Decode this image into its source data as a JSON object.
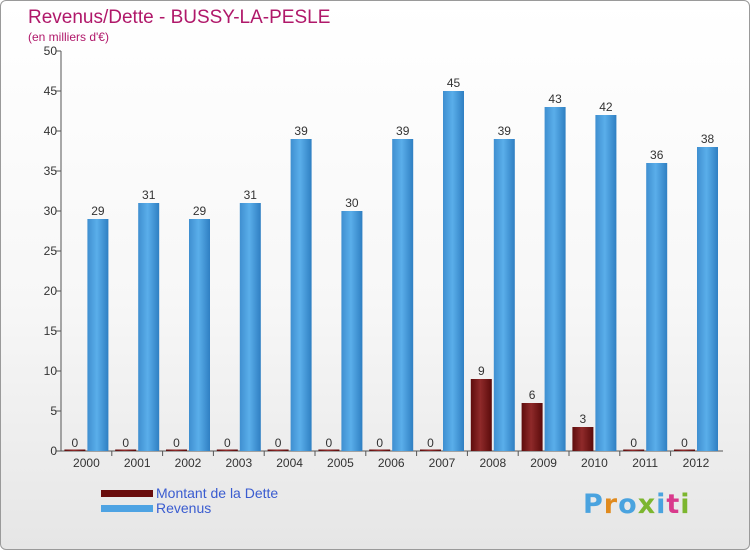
{
  "header": {
    "title": "Revenus/Dette - BUSSY-LA-PESLE",
    "subtitle": "(en milliers d'€)"
  },
  "colors": {
    "dette": "#7a1515",
    "revenus": "#4ea3e3",
    "title": "#b0186a",
    "legend_text": "#3a5cd0"
  },
  "logo": {
    "text": "Proxiti",
    "letter_colors": [
      "#4aa3df",
      "#e08a1e",
      "#4aa3df",
      "#7cb62f",
      "#4aa3df",
      "#d93a8c",
      "#7cb62f"
    ]
  },
  "chart_data": {
    "type": "bar",
    "title": "Revenus/Dette - BUSSY-LA-PESLE",
    "subtitle": "(en milliers d'€)",
    "categories": [
      "2000",
      "2001",
      "2002",
      "2003",
      "2004",
      "2005",
      "2006",
      "2007",
      "2008",
      "2009",
      "2010",
      "2011",
      "2012"
    ],
    "series": [
      {
        "name": "Montant de la Dette",
        "values": [
          0,
          0,
          0,
          0,
          0,
          0,
          0,
          0,
          9,
          6,
          3,
          0,
          0
        ]
      },
      {
        "name": "Revenus",
        "values": [
          29,
          31,
          29,
          31,
          39,
          30,
          39,
          45,
          39,
          43,
          42,
          36,
          38
        ]
      }
    ],
    "ylim": [
      0,
      50
    ],
    "yticks": [
      0,
      5,
      10,
      15,
      20,
      25,
      30,
      35,
      40,
      45,
      50
    ],
    "grid": false,
    "legend_position": "bottom-left"
  }
}
